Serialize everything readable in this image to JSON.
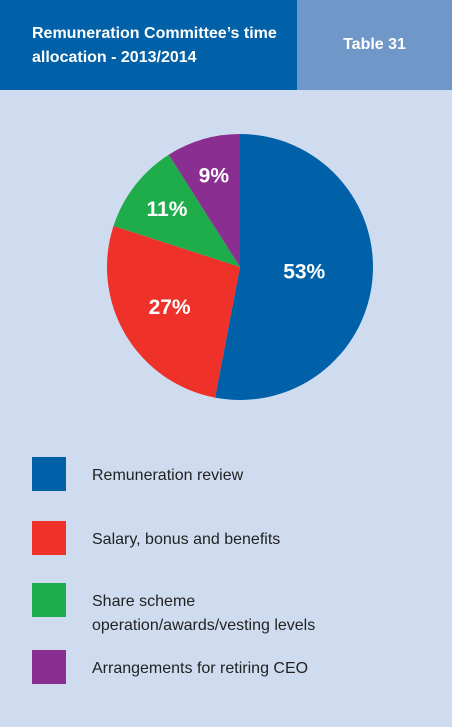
{
  "chart_data": {
    "type": "pie",
    "title": "Remuneration Committee’s time allocation - 2013/2014",
    "table_label": "Table 31",
    "categories": [
      "Remuneration review",
      "Salary, bonus and benefits",
      "Share scheme operation/awards/vesting levels",
      "Arrangements for retiring CEO"
    ],
    "values": [
      53,
      27,
      11,
      9
    ],
    "value_labels": [
      "53%",
      "27%",
      "11%",
      "9%"
    ],
    "colors": [
      "#0061a8",
      "#ee3129",
      "#1fad4b",
      "#8a2e91"
    ]
  }
}
